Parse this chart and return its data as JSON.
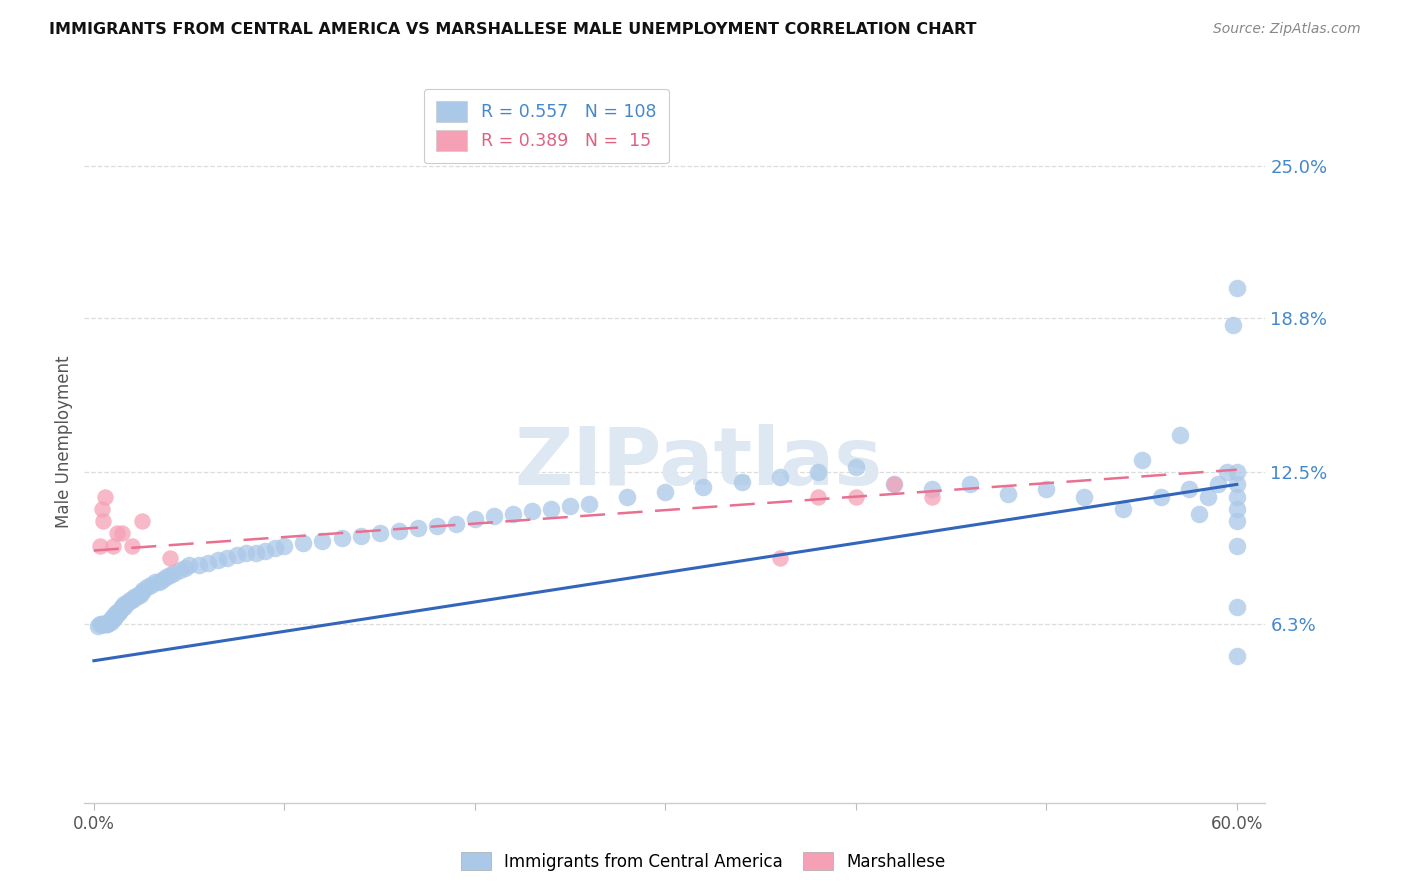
{
  "title": "IMMIGRANTS FROM CENTRAL AMERICA VS MARSHALLESE MALE UNEMPLOYMENT CORRELATION CHART",
  "source": "Source: ZipAtlas.com",
  "ylabel": "Male Unemployment",
  "legend_label_1": "Immigrants from Central America",
  "legend_label_2": "Marshallese",
  "R1": 0.557,
  "N1": 108,
  "R2": 0.389,
  "N2": 15,
  "xlim": [
    -0.005,
    0.615
  ],
  "ylim": [
    -0.01,
    0.285
  ],
  "yticks": [
    0.063,
    0.125,
    0.188,
    0.25
  ],
  "ytick_labels": [
    "6.3%",
    "12.5%",
    "18.8%",
    "25.0%"
  ],
  "xticks": [
    0.0,
    0.1,
    0.2,
    0.3,
    0.4,
    0.5,
    0.6
  ],
  "xtick_labels": [
    "0.0%",
    "",
    "",
    "",
    "",
    "",
    "60.0%"
  ],
  "color_blue": "#aac8e8",
  "color_pink": "#f5a0b5",
  "line_blue": "#3366bb",
  "line_pink": "#e87090",
  "watermark": "ZIPatlas",
  "watermark_color": "#dde8f2",
  "blue_x": [
    0.002,
    0.003,
    0.004,
    0.005,
    0.005,
    0.006,
    0.006,
    0.007,
    0.007,
    0.008,
    0.008,
    0.009,
    0.009,
    0.01,
    0.01,
    0.01,
    0.01,
    0.011,
    0.011,
    0.012,
    0.012,
    0.013,
    0.013,
    0.014,
    0.014,
    0.015,
    0.015,
    0.016,
    0.016,
    0.017,
    0.018,
    0.019,
    0.02,
    0.021,
    0.022,
    0.023,
    0.024,
    0.025,
    0.026,
    0.028,
    0.03,
    0.032,
    0.034,
    0.036,
    0.038,
    0.04,
    0.042,
    0.045,
    0.048,
    0.05,
    0.055,
    0.06,
    0.065,
    0.07,
    0.075,
    0.08,
    0.085,
    0.09,
    0.095,
    0.1,
    0.11,
    0.12,
    0.13,
    0.14,
    0.15,
    0.16,
    0.17,
    0.18,
    0.19,
    0.2,
    0.21,
    0.22,
    0.23,
    0.24,
    0.25,
    0.26,
    0.28,
    0.3,
    0.32,
    0.34,
    0.36,
    0.38,
    0.4,
    0.42,
    0.44,
    0.46,
    0.48,
    0.5,
    0.52,
    0.54,
    0.55,
    0.56,
    0.57,
    0.575,
    0.58,
    0.585,
    0.59,
    0.595,
    0.598,
    0.6,
    0.6,
    0.6,
    0.6,
    0.6,
    0.6,
    0.6,
    0.6,
    0.6
  ],
  "blue_y": [
    0.062,
    0.063,
    0.063,
    0.063,
    0.063,
    0.063,
    0.063,
    0.063,
    0.063,
    0.064,
    0.064,
    0.064,
    0.065,
    0.065,
    0.065,
    0.066,
    0.066,
    0.066,
    0.067,
    0.067,
    0.068,
    0.068,
    0.068,
    0.069,
    0.069,
    0.07,
    0.07,
    0.07,
    0.071,
    0.071,
    0.072,
    0.073,
    0.073,
    0.074,
    0.074,
    0.075,
    0.075,
    0.076,
    0.077,
    0.078,
    0.079,
    0.08,
    0.08,
    0.081,
    0.082,
    0.083,
    0.084,
    0.085,
    0.086,
    0.087,
    0.087,
    0.088,
    0.089,
    0.09,
    0.091,
    0.092,
    0.092,
    0.093,
    0.094,
    0.095,
    0.096,
    0.097,
    0.098,
    0.099,
    0.1,
    0.101,
    0.102,
    0.103,
    0.104,
    0.106,
    0.107,
    0.108,
    0.109,
    0.11,
    0.111,
    0.112,
    0.115,
    0.117,
    0.119,
    0.121,
    0.123,
    0.125,
    0.127,
    0.12,
    0.118,
    0.12,
    0.116,
    0.118,
    0.115,
    0.11,
    0.13,
    0.115,
    0.14,
    0.118,
    0.108,
    0.115,
    0.12,
    0.125,
    0.185,
    0.05,
    0.07,
    0.095,
    0.105,
    0.11,
    0.115,
    0.12,
    0.125,
    0.2
  ],
  "pink_x": [
    0.003,
    0.004,
    0.005,
    0.006,
    0.01,
    0.012,
    0.015,
    0.02,
    0.025,
    0.04,
    0.36,
    0.38,
    0.4,
    0.42,
    0.44
  ],
  "pink_y": [
    0.095,
    0.11,
    0.105,
    0.115,
    0.095,
    0.1,
    0.1,
    0.095,
    0.105,
    0.09,
    0.09,
    0.115,
    0.115,
    0.12,
    0.115
  ],
  "blue_line_x": [
    0.0,
    0.6
  ],
  "blue_line_y": [
    0.048,
    0.12
  ],
  "pink_line_x": [
    0.0,
    0.6
  ],
  "pink_line_y": [
    0.093,
    0.126
  ]
}
